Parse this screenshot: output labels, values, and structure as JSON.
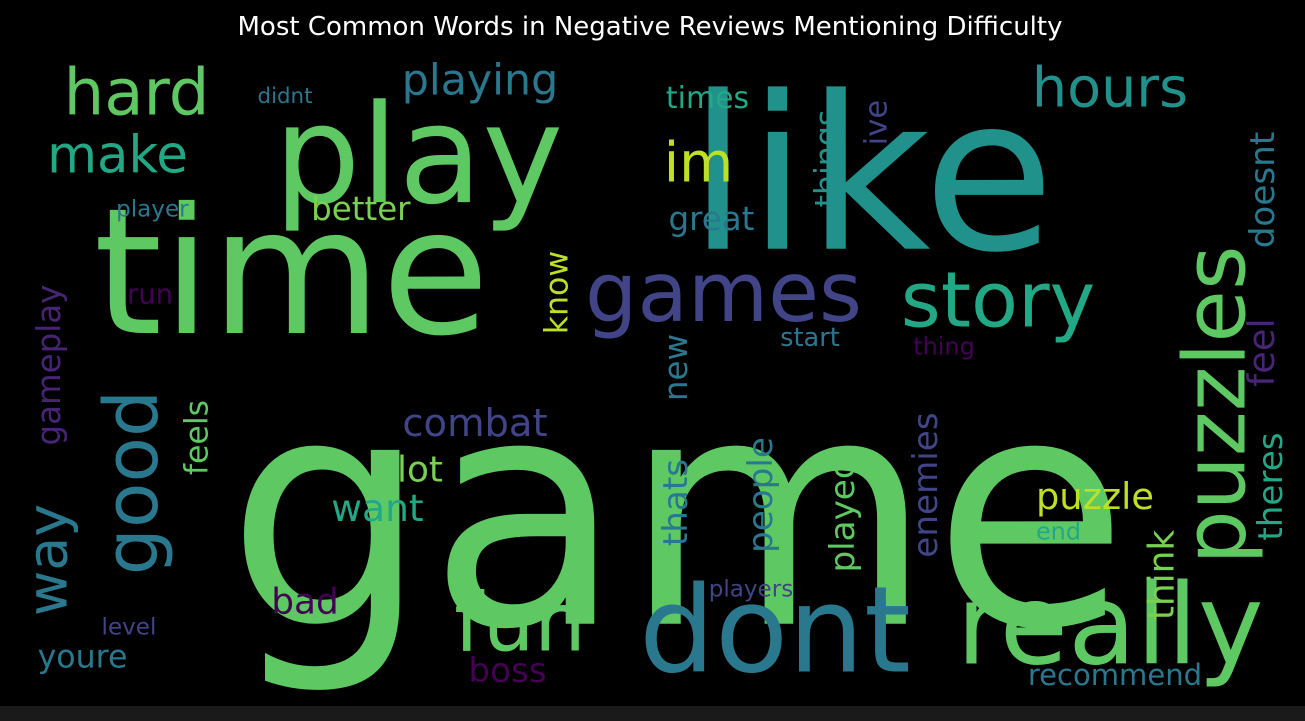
{
  "chart_data": {
    "type": "wordcloud",
    "title": "Most Common Words in Negative Reviews Mentioning Difficulty",
    "background": "#000000",
    "words": [
      {
        "text": "game",
        "color": "#5ec962"
      },
      {
        "text": "like",
        "color": "#21918c"
      },
      {
        "text": "time",
        "color": "#5ec962"
      },
      {
        "text": "play",
        "color": "#5ec962"
      },
      {
        "text": "dont",
        "color": "#2a788e"
      },
      {
        "text": "really",
        "color": "#5ec962"
      },
      {
        "text": "games",
        "color": "#414487"
      },
      {
        "text": "story",
        "color": "#22a884"
      },
      {
        "text": "puzzles",
        "color": "#5ec962"
      },
      {
        "text": "hours",
        "color": "#21918c"
      },
      {
        "text": "fun",
        "color": "#5ec962"
      },
      {
        "text": "good",
        "color": "#2a788e"
      },
      {
        "text": "hard",
        "color": "#5ec962"
      },
      {
        "text": "make",
        "color": "#22a884"
      },
      {
        "text": "way",
        "color": "#2a788e"
      },
      {
        "text": "im",
        "color": "#bddf26"
      },
      {
        "text": "playing",
        "color": "#2a788e"
      },
      {
        "text": "times",
        "color": "#22a884"
      },
      {
        "text": "better",
        "color": "#7ad151"
      },
      {
        "text": "great",
        "color": "#2a788e"
      },
      {
        "text": "things",
        "color": "#21918c"
      },
      {
        "text": "ive",
        "color": "#414487"
      },
      {
        "text": "doesnt",
        "color": "#2a788e"
      },
      {
        "text": "feel",
        "color": "#482475"
      },
      {
        "text": "theres",
        "color": "#22a884"
      },
      {
        "text": "puzzle",
        "color": "#bddf26"
      },
      {
        "text": "think",
        "color": "#7ad151"
      },
      {
        "text": "end",
        "color": "#22a884"
      },
      {
        "text": "recommend",
        "color": "#2a788e"
      },
      {
        "text": "enemies",
        "color": "#414487"
      },
      {
        "text": "played",
        "color": "#5ec962"
      },
      {
        "text": "people",
        "color": "#2a788e"
      },
      {
        "text": "thats",
        "color": "#2a788e"
      },
      {
        "text": "new",
        "color": "#2a788e"
      },
      {
        "text": "know",
        "color": "#bddf26"
      },
      {
        "text": "start",
        "color": "#2a788e"
      },
      {
        "text": "thing",
        "color": "#440154"
      },
      {
        "text": "combat",
        "color": "#414487"
      },
      {
        "text": "lot",
        "color": "#7ad151"
      },
      {
        "text": "want",
        "color": "#22a884"
      },
      {
        "text": "feels",
        "color": "#5ec962"
      },
      {
        "text": "run",
        "color": "#440154"
      },
      {
        "text": "gameplay",
        "color": "#482475"
      },
      {
        "text": "player",
        "color": "#2a788e"
      },
      {
        "text": "didnt",
        "color": "#2a788e"
      },
      {
        "text": "bad",
        "color": "#440154"
      },
      {
        "text": "boss",
        "color": "#440154"
      },
      {
        "text": "players",
        "color": "#414487"
      },
      {
        "text": "youre",
        "color": "#2a788e"
      },
      {
        "text": "level",
        "color": "#414487"
      }
    ]
  }
}
